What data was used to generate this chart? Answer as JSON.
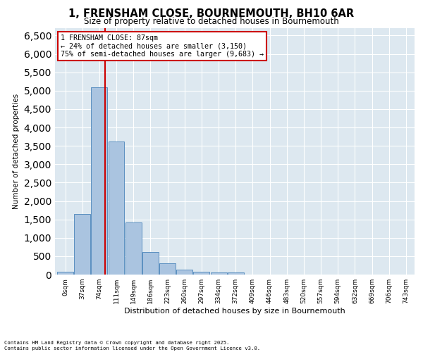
{
  "title": "1, FRENSHAM CLOSE, BOURNEMOUTH, BH10 6AR",
  "subtitle": "Size of property relative to detached houses in Bournemouth",
  "xlabel": "Distribution of detached houses by size in Bournemouth",
  "ylabel": "Number of detached properties",
  "bar_values": [
    75,
    1650,
    5100,
    3620,
    1420,
    620,
    310,
    130,
    80,
    50,
    50,
    0,
    0,
    0,
    0,
    0,
    0,
    0,
    0,
    0,
    0
  ],
  "categories": [
    "0sqm",
    "37sqm",
    "74sqm",
    "111sqm",
    "149sqm",
    "186sqm",
    "223sqm",
    "260sqm",
    "297sqm",
    "334sqm",
    "372sqm",
    "409sqm",
    "446sqm",
    "483sqm",
    "520sqm",
    "557sqm",
    "594sqm",
    "632sqm",
    "669sqm",
    "706sqm",
    "743sqm"
  ],
  "bar_color": "#aac4e0",
  "bar_edge_color": "#5a8fc0",
  "vline_x": 2.35,
  "annotation_title": "1 FRENSHAM CLOSE: 87sqm",
  "annotation_line1": "← 24% of detached houses are smaller (3,150)",
  "annotation_line2": "75% of semi-detached houses are larger (9,683) →",
  "annotation_box_color": "#ffffff",
  "annotation_box_edge": "#cc0000",
  "vline_color": "#cc0000",
  "ylim": [
    0,
    6700
  ],
  "yticks": [
    0,
    500,
    1000,
    1500,
    2000,
    2500,
    3000,
    3500,
    4000,
    4500,
    5000,
    5500,
    6000,
    6500
  ],
  "background_color": "#dde8f0",
  "footer_line1": "Contains HM Land Registry data © Crown copyright and database right 2025.",
  "footer_line2": "Contains public sector information licensed under the Open Government Licence v3.0."
}
